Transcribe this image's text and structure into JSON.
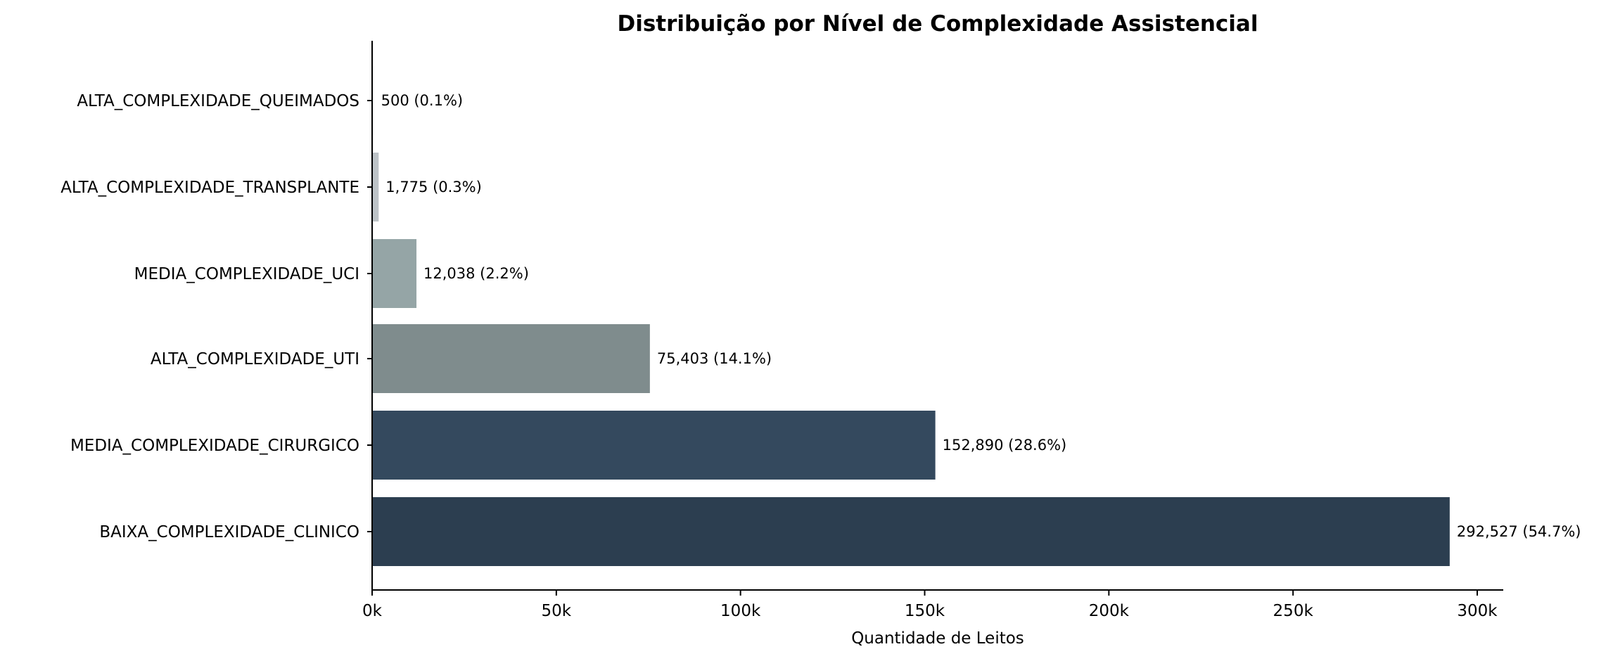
{
  "chart_data": {
    "type": "bar",
    "orientation": "horizontal",
    "title": "Distribuição por Nível de Complexidade Assistencial",
    "xlabel": "Quantidade de Leitos",
    "ylabel": "",
    "xlim": [
      0,
      306500
    ],
    "xticks": [
      0,
      50000,
      100000,
      150000,
      200000,
      250000,
      300000
    ],
    "xtick_labels": [
      "0k",
      "50k",
      "100k",
      "150k",
      "200k",
      "250k",
      "300k"
    ],
    "grid": false,
    "categories": [
      "ALTA_COMPLEXIDADE_QUEIMADOS",
      "ALTA_COMPLEXIDADE_TRANSPLANTE",
      "MEDIA_COMPLEXIDADE_UCI",
      "ALTA_COMPLEXIDADE_UTI",
      "MEDIA_COMPLEXIDADE_CIRURGICO",
      "BAIXA_COMPLEXIDADE_CLINICO"
    ],
    "values": [
      500,
      1775,
      12038,
      75403,
      152890,
      292527
    ],
    "data_labels": [
      "500 (0.1%)",
      "1,775 (0.3%)",
      "12,038 (2.2%)",
      "75,403 (14.1%)",
      "152,890 (28.6%)",
      "292,527 (54.7%)"
    ],
    "colors": [
      "#ecf0f1",
      "#bdc3c7",
      "#95a5a6",
      "#7f8c8d",
      "#34495e",
      "#2c3e50"
    ]
  }
}
